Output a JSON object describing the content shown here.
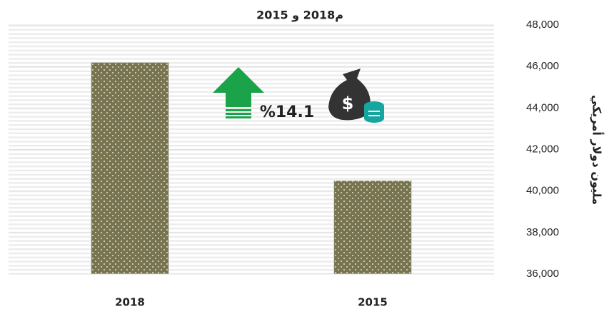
{
  "chart_data": {
    "type": "bar",
    "title": "2015 و 2018م",
    "y_axis_label": "مليون دولار أمريكي",
    "annotation": "%14.1",
    "categories": [
      "2018",
      "2015"
    ],
    "values": [
      46200,
      40500
    ],
    "color": "#77744f",
    "ylim": [
      36000,
      48000
    ],
    "yticks": [
      {
        "value": 36000,
        "label": "36,000"
      },
      {
        "value": 38000,
        "label": "38,000"
      },
      {
        "value": 40000,
        "label": "40,000"
      },
      {
        "value": 42000,
        "label": "42,000"
      },
      {
        "value": 44000,
        "label": "44,000"
      },
      {
        "value": 46000,
        "label": "46,000"
      },
      {
        "value": 48000,
        "label": "48,000"
      }
    ],
    "grid": true
  }
}
